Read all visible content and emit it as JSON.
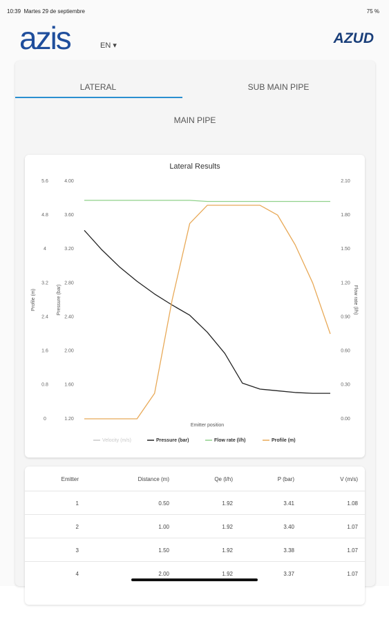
{
  "status_bar": {
    "time": "10:39",
    "date": "Martes 29 de septiembre",
    "battery": "75 %"
  },
  "header": {
    "logo": "azis",
    "language": "EN",
    "brand": "AZUD"
  },
  "tabs": [
    "LATERAL",
    "SUB MAIN PIPE",
    "MAIN PIPE"
  ],
  "chart_data": {
    "type": "line",
    "title": "Lateral Results",
    "xlabel": "Emitter position",
    "ylabel": "Pressure (bar)",
    "y2label": "Flow rate (l/h)",
    "y3label": "Profile (m)",
    "ylim": [
      1.2,
      4.0
    ],
    "yticks": [
      {
        "value": 1.2,
        "label": "1.20"
      },
      {
        "value": 1.6,
        "label": "1.60"
      },
      {
        "value": 2.0,
        "label": "2.00"
      },
      {
        "value": 2.4,
        "label": "2.40"
      },
      {
        "value": 2.8,
        "label": "2.80"
      },
      {
        "value": 3.2,
        "label": "3.20"
      },
      {
        "value": 3.6,
        "label": "3.60"
      },
      {
        "value": 4.0,
        "label": "4.00"
      }
    ],
    "y2lim": [
      0,
      2.1
    ],
    "y2ticks": [
      {
        "value": 0,
        "label": "0.00"
      },
      {
        "value": 0.3,
        "label": "0.30"
      },
      {
        "value": 0.6,
        "label": "0.60"
      },
      {
        "value": 0.9,
        "label": "0.90"
      },
      {
        "value": 1.2,
        "label": "1.20"
      },
      {
        "value": 1.5,
        "label": "1.50"
      },
      {
        "value": 1.8,
        "label": "1.80"
      },
      {
        "value": 2.1,
        "label": "2.10"
      }
    ],
    "y3lim": [
      0,
      5.6
    ],
    "y3ticks": [
      0,
      0.8,
      1.6,
      2.4,
      3.2,
      4,
      4.8,
      5.6
    ],
    "series": [
      {
        "name": "Velocity (m/s)",
        "color": "#c8c8c8",
        "visible": false
      },
      {
        "name": "Pressure (bar)",
        "color": "#222222",
        "axis": "y",
        "values": [
          3.42,
          3.19,
          2.99,
          2.82,
          2.67,
          2.54,
          2.42,
          2.22,
          1.97,
          1.62,
          1.55,
          1.53,
          1.51,
          1.5,
          1.5
        ]
      },
      {
        "name": "Flow rate (l/h)",
        "color": "#8fd18a",
        "axis": "y2",
        "values": [
          1.93,
          1.93,
          1.93,
          1.93,
          1.93,
          1.93,
          1.93,
          1.92,
          1.92,
          1.92,
          1.92,
          1.92,
          1.92,
          1.92,
          1.92
        ]
      },
      {
        "name": "Profile (m)",
        "color": "#e8a957",
        "axis": "y3",
        "values": [
          0,
          0,
          0,
          0,
          0.6,
          2.8,
          4.6,
          5.03,
          5.03,
          5.03,
          5.03,
          4.8,
          4.1,
          3.2,
          2.0
        ]
      }
    ]
  },
  "table": {
    "headers": [
      "Emitter",
      "Distance (m)",
      "Qe (l/h)",
      "P (bar)",
      "V (m/s)"
    ],
    "rows": [
      [
        "1",
        "0.50",
        "1.92",
        "3.41",
        "1.08"
      ],
      [
        "2",
        "1.00",
        "1.92",
        "3.40",
        "1.07"
      ],
      [
        "3",
        "1.50",
        "1.92",
        "3.38",
        "1.07"
      ],
      [
        "4",
        "2.00",
        "1.92",
        "3.37",
        "1.07"
      ]
    ]
  }
}
